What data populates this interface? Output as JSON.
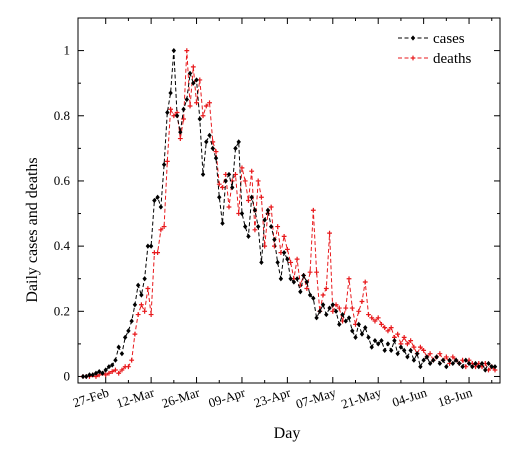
{
  "chart_data": {
    "type": "line",
    "title": "",
    "xlabel": "Day",
    "ylabel": "Daily cases and deaths",
    "ylim": [
      -0.02,
      1.1
    ],
    "yticks": [
      0,
      0.2,
      0.4,
      0.6,
      0.8,
      1
    ],
    "ytick_labels": [
      "0",
      "0.2",
      "0.4",
      "0.6",
      "0.8",
      "1"
    ],
    "x_start": "2020-02-20",
    "x_end": "2020-06-26",
    "xticks": [
      "2020-02-27",
      "2020-03-12",
      "2020-03-26",
      "2020-04-09",
      "2020-04-23",
      "2020-05-07",
      "2020-05-21",
      "2020-06-04",
      "2020-06-18"
    ],
    "xtick_labels": [
      "27-Feb",
      "12-Mar",
      "26-Mar",
      "09-Apr",
      "23-Apr",
      "07-May",
      "21-May",
      "04-Jun",
      "18-Jun"
    ],
    "grid": false,
    "legend_position": "top-right",
    "series": [
      {
        "name": "cases",
        "color": "#000000",
        "style": "dashed",
        "marker": "diamond",
        "points": [
          [
            "2020-02-20",
            0.0
          ],
          [
            "2020-02-21",
            0.0
          ],
          [
            "2020-02-22",
            0.005
          ],
          [
            "2020-02-23",
            0.005
          ],
          [
            "2020-02-24",
            0.01
          ],
          [
            "2020-02-25",
            0.015
          ],
          [
            "2020-02-26",
            0.01
          ],
          [
            "2020-02-27",
            0.02
          ],
          [
            "2020-02-28",
            0.03
          ],
          [
            "2020-02-29",
            0.035
          ],
          [
            "2020-03-01",
            0.05
          ],
          [
            "2020-03-02",
            0.09
          ],
          [
            "2020-03-03",
            0.07
          ],
          [
            "2020-03-04",
            0.12
          ],
          [
            "2020-03-05",
            0.14
          ],
          [
            "2020-03-06",
            0.17
          ],
          [
            "2020-03-07",
            0.22
          ],
          [
            "2020-03-08",
            0.28
          ],
          [
            "2020-03-09",
            0.25
          ],
          [
            "2020-03-10",
            0.3
          ],
          [
            "2020-03-11",
            0.4
          ],
          [
            "2020-03-12",
            0.4
          ],
          [
            "2020-03-13",
            0.54
          ],
          [
            "2020-03-14",
            0.55
          ],
          [
            "2020-03-15",
            0.52
          ],
          [
            "2020-03-16",
            0.65
          ],
          [
            "2020-03-17",
            0.81
          ],
          [
            "2020-03-18",
            0.87
          ],
          [
            "2020-03-19",
            1.0
          ],
          [
            "2020-03-20",
            0.8
          ],
          [
            "2020-03-21",
            0.75
          ],
          [
            "2020-03-22",
            0.82
          ],
          [
            "2020-03-23",
            0.85
          ],
          [
            "2020-03-24",
            0.93
          ],
          [
            "2020-03-25",
            0.9
          ],
          [
            "2020-03-26",
            0.91
          ],
          [
            "2020-03-27",
            0.79
          ],
          [
            "2020-03-28",
            0.62
          ],
          [
            "2020-03-29",
            0.72
          ],
          [
            "2020-03-30",
            0.74
          ],
          [
            "2020-03-31",
            0.7
          ],
          [
            "2020-04-01",
            0.67
          ],
          [
            "2020-04-02",
            0.55
          ],
          [
            "2020-04-03",
            0.47
          ],
          [
            "2020-04-04",
            0.6
          ],
          [
            "2020-04-05",
            0.62
          ],
          [
            "2020-04-06",
            0.58
          ],
          [
            "2020-04-07",
            0.7
          ],
          [
            "2020-04-08",
            0.72
          ],
          [
            "2020-04-09",
            0.5
          ],
          [
            "2020-04-10",
            0.46
          ],
          [
            "2020-04-11",
            0.43
          ],
          [
            "2020-04-12",
            0.55
          ],
          [
            "2020-04-13",
            0.51
          ],
          [
            "2020-04-14",
            0.46
          ],
          [
            "2020-04-15",
            0.35
          ],
          [
            "2020-04-16",
            0.48
          ],
          [
            "2020-04-17",
            0.51
          ],
          [
            "2020-04-18",
            0.46
          ],
          [
            "2020-04-19",
            0.42
          ],
          [
            "2020-04-20",
            0.35
          ],
          [
            "2020-04-21",
            0.3
          ],
          [
            "2020-04-22",
            0.38
          ],
          [
            "2020-04-23",
            0.36
          ],
          [
            "2020-04-24",
            0.3
          ],
          [
            "2020-04-25",
            0.29
          ],
          [
            "2020-04-26",
            0.3
          ],
          [
            "2020-04-27",
            0.26
          ],
          [
            "2020-04-28",
            0.31
          ],
          [
            "2020-04-29",
            0.29
          ],
          [
            "2020-04-30",
            0.25
          ],
          [
            "2020-05-01",
            0.24
          ],
          [
            "2020-05-02",
            0.18
          ],
          [
            "2020-05-03",
            0.2
          ],
          [
            "2020-05-04",
            0.22
          ],
          [
            "2020-05-05",
            0.19
          ],
          [
            "2020-05-06",
            0.21
          ],
          [
            "2020-05-07",
            0.22
          ],
          [
            "2020-05-08",
            0.2
          ],
          [
            "2020-05-09",
            0.16
          ],
          [
            "2020-05-10",
            0.19
          ],
          [
            "2020-05-11",
            0.17
          ],
          [
            "2020-05-12",
            0.18
          ],
          [
            "2020-05-13",
            0.14
          ],
          [
            "2020-05-14",
            0.12
          ],
          [
            "2020-05-15",
            0.16
          ],
          [
            "2020-05-16",
            0.13
          ],
          [
            "2020-05-17",
            0.15
          ],
          [
            "2020-05-18",
            0.12
          ],
          [
            "2020-05-19",
            0.09
          ],
          [
            "2020-05-20",
            0.11
          ],
          [
            "2020-05-21",
            0.1
          ],
          [
            "2020-05-22",
            0.11
          ],
          [
            "2020-05-23",
            0.08
          ],
          [
            "2020-05-24",
            0.1
          ],
          [
            "2020-05-25",
            0.08
          ],
          [
            "2020-05-26",
            0.11
          ],
          [
            "2020-05-27",
            0.07
          ],
          [
            "2020-05-28",
            0.09
          ],
          [
            "2020-05-29",
            0.08
          ],
          [
            "2020-05-30",
            0.06
          ],
          [
            "2020-05-31",
            0.08
          ],
          [
            "2020-06-01",
            0.05
          ],
          [
            "2020-06-02",
            0.07
          ],
          [
            "2020-06-03",
            0.03
          ],
          [
            "2020-06-04",
            0.05
          ],
          [
            "2020-06-05",
            0.06
          ],
          [
            "2020-06-06",
            0.04
          ],
          [
            "2020-06-07",
            0.05
          ],
          [
            "2020-06-08",
            0.06
          ],
          [
            "2020-06-09",
            0.04
          ],
          [
            "2020-06-10",
            0.05
          ],
          [
            "2020-06-11",
            0.03
          ],
          [
            "2020-06-12",
            0.05
          ],
          [
            "2020-06-13",
            0.04
          ],
          [
            "2020-06-14",
            0.05
          ],
          [
            "2020-06-15",
            0.04
          ],
          [
            "2020-06-16",
            0.03
          ],
          [
            "2020-06-17",
            0.05
          ],
          [
            "2020-06-18",
            0.04
          ],
          [
            "2020-06-19",
            0.03
          ],
          [
            "2020-06-20",
            0.04
          ],
          [
            "2020-06-21",
            0.03
          ],
          [
            "2020-06-22",
            0.04
          ],
          [
            "2020-06-23",
            0.02
          ],
          [
            "2020-06-24",
            0.04
          ],
          [
            "2020-06-25",
            0.03
          ],
          [
            "2020-06-26",
            0.03
          ]
        ]
      },
      {
        "name": "deaths",
        "color": "#e8191c",
        "style": "dashed",
        "marker": "plus",
        "points": [
          [
            "2020-02-20",
            0.0
          ],
          [
            "2020-02-21",
            0.0
          ],
          [
            "2020-02-22",
            0.0
          ],
          [
            "2020-02-23",
            0.005
          ],
          [
            "2020-02-24",
            0.0
          ],
          [
            "2020-02-25",
            0.005
          ],
          [
            "2020-02-26",
            0.01
          ],
          [
            "2020-02-27",
            0.005
          ],
          [
            "2020-02-28",
            0.01
          ],
          [
            "2020-02-29",
            0.015
          ],
          [
            "2020-03-01",
            0.02
          ],
          [
            "2020-03-02",
            0.01
          ],
          [
            "2020-03-03",
            0.02
          ],
          [
            "2020-03-04",
            0.03
          ],
          [
            "2020-03-05",
            0.03
          ],
          [
            "2020-03-06",
            0.05
          ],
          [
            "2020-03-07",
            0.13
          ],
          [
            "2020-03-08",
            0.19
          ],
          [
            "2020-03-09",
            0.22
          ],
          [
            "2020-03-10",
            0.2
          ],
          [
            "2020-03-11",
            0.27
          ],
          [
            "2020-03-12",
            0.19
          ],
          [
            "2020-03-13",
            0.38
          ],
          [
            "2020-03-14",
            0.38
          ],
          [
            "2020-03-15",
            0.45
          ],
          [
            "2020-03-16",
            0.46
          ],
          [
            "2020-03-17",
            0.66
          ],
          [
            "2020-03-18",
            0.82
          ],
          [
            "2020-03-19",
            0.8
          ],
          [
            "2020-03-20",
            0.81
          ],
          [
            "2020-03-21",
            0.73
          ],
          [
            "2020-03-22",
            0.79
          ],
          [
            "2020-03-23",
            1.0
          ],
          [
            "2020-03-24",
            0.83
          ],
          [
            "2020-03-25",
            0.95
          ],
          [
            "2020-03-26",
            0.84
          ],
          [
            "2020-03-27",
            0.91
          ],
          [
            "2020-03-28",
            0.8
          ],
          [
            "2020-03-29",
            0.83
          ],
          [
            "2020-03-30",
            0.84
          ],
          [
            "2020-03-31",
            0.72
          ],
          [
            "2020-04-01",
            0.69
          ],
          [
            "2020-04-02",
            0.59
          ],
          [
            "2020-04-03",
            0.58
          ],
          [
            "2020-04-04",
            0.62
          ],
          [
            "2020-04-05",
            0.52
          ],
          [
            "2020-04-06",
            0.6
          ],
          [
            "2020-04-07",
            0.62
          ],
          [
            "2020-04-08",
            0.5
          ],
          [
            "2020-04-09",
            0.64
          ],
          [
            "2020-04-10",
            0.6
          ],
          [
            "2020-04-11",
            0.54
          ],
          [
            "2020-04-12",
            0.63
          ],
          [
            "2020-04-13",
            0.45
          ],
          [
            "2020-04-14",
            0.6
          ],
          [
            "2020-04-15",
            0.55
          ],
          [
            "2020-04-16",
            0.4
          ],
          [
            "2020-04-17",
            0.5
          ],
          [
            "2020-04-18",
            0.52
          ],
          [
            "2020-04-19",
            0.4
          ],
          [
            "2020-04-20",
            0.46
          ],
          [
            "2020-04-21",
            0.38
          ],
          [
            "2020-04-22",
            0.43
          ],
          [
            "2020-04-23",
            0.39
          ],
          [
            "2020-04-24",
            0.35
          ],
          [
            "2020-04-25",
            0.3
          ],
          [
            "2020-04-26",
            0.36
          ],
          [
            "2020-04-27",
            0.28
          ],
          [
            "2020-04-28",
            0.31
          ],
          [
            "2020-04-29",
            0.27
          ],
          [
            "2020-04-30",
            0.32
          ],
          [
            "2020-05-01",
            0.51
          ],
          [
            "2020-05-02",
            0.32
          ],
          [
            "2020-05-03",
            0.2
          ],
          [
            "2020-05-04",
            0.25
          ],
          [
            "2020-05-05",
            0.27
          ],
          [
            "2020-05-06",
            0.44
          ],
          [
            "2020-05-07",
            0.2
          ],
          [
            "2020-05-08",
            0.22
          ],
          [
            "2020-05-09",
            0.21
          ],
          [
            "2020-05-10",
            0.17
          ],
          [
            "2020-05-11",
            0.21
          ],
          [
            "2020-05-12",
            0.3
          ],
          [
            "2020-05-13",
            0.21
          ],
          [
            "2020-05-14",
            0.16
          ],
          [
            "2020-05-15",
            0.2
          ],
          [
            "2020-05-16",
            0.23
          ],
          [
            "2020-05-17",
            0.29
          ],
          [
            "2020-05-18",
            0.19
          ],
          [
            "2020-05-19",
            0.18
          ],
          [
            "2020-05-20",
            0.17
          ],
          [
            "2020-05-21",
            0.18
          ],
          [
            "2020-05-22",
            0.16
          ],
          [
            "2020-05-23",
            0.15
          ],
          [
            "2020-05-24",
            0.14
          ],
          [
            "2020-05-25",
            0.15
          ],
          [
            "2020-05-26",
            0.12
          ],
          [
            "2020-05-27",
            0.13
          ],
          [
            "2020-05-28",
            0.1
          ],
          [
            "2020-05-29",
            0.12
          ],
          [
            "2020-05-30",
            0.1
          ],
          [
            "2020-05-31",
            0.11
          ],
          [
            "2020-06-01",
            0.09
          ],
          [
            "2020-06-02",
            0.07
          ],
          [
            "2020-06-03",
            0.09
          ],
          [
            "2020-06-04",
            0.08
          ],
          [
            "2020-06-05",
            0.06
          ],
          [
            "2020-06-06",
            0.07
          ],
          [
            "2020-06-07",
            0.05
          ],
          [
            "2020-06-08",
            0.06
          ],
          [
            "2020-06-09",
            0.07
          ],
          [
            "2020-06-10",
            0.05
          ],
          [
            "2020-06-11",
            0.06
          ],
          [
            "2020-06-12",
            0.04
          ],
          [
            "2020-06-13",
            0.06
          ],
          [
            "2020-06-14",
            0.05
          ],
          [
            "2020-06-15",
            0.04
          ],
          [
            "2020-06-16",
            0.05
          ],
          [
            "2020-06-17",
            0.03
          ],
          [
            "2020-06-18",
            0.05
          ],
          [
            "2020-06-19",
            0.04
          ],
          [
            "2020-06-20",
            0.03
          ],
          [
            "2020-06-21",
            0.04
          ],
          [
            "2020-06-22",
            0.03
          ],
          [
            "2020-06-23",
            0.04
          ],
          [
            "2020-06-24",
            0.02
          ],
          [
            "2020-06-25",
            0.03
          ],
          [
            "2020-06-26",
            0.02
          ]
        ]
      }
    ]
  }
}
